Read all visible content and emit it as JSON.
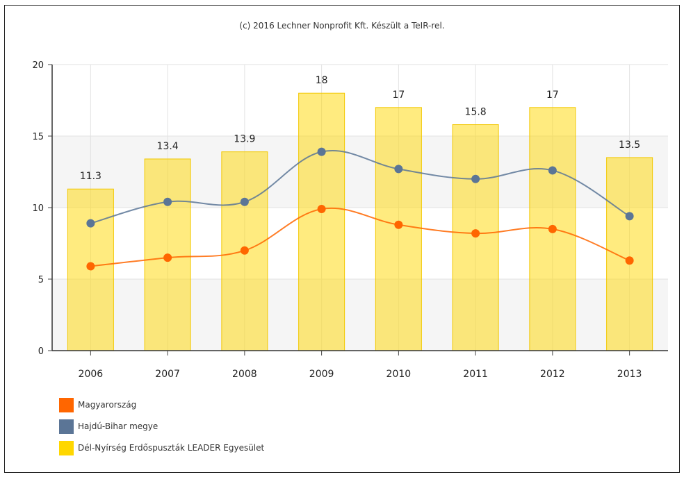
{
  "credit": "(c) 2016 Lechner Nonprofit Kft. Készült a TeIR-rel.",
  "chart_data": {
    "type": "bar",
    "categories": [
      "2006",
      "2007",
      "2008",
      "2009",
      "2010",
      "2011",
      "2012",
      "2013"
    ],
    "ylim": [
      0,
      20
    ],
    "yticks": [
      0,
      5,
      10,
      15,
      20
    ],
    "grid": true,
    "legend_position": "bottom-left",
    "bar_series": {
      "name": "Dél-Nyírség Erdőspuszták LEADER Egyesület",
      "color": "#ffd700",
      "values": [
        11.3,
        13.4,
        13.9,
        18,
        17,
        15.8,
        17,
        13.5
      ],
      "labels": [
        "11.3",
        "13.4",
        "13.9",
        "18",
        "17",
        "15.8",
        "17",
        "13.5"
      ]
    },
    "line_series": [
      {
        "name": "Magyarország",
        "color": "#ff6600",
        "values": [
          5.9,
          6.5,
          7.0,
          9.9,
          8.8,
          8.2,
          8.5,
          6.3
        ]
      },
      {
        "name": "Hajdú-Bihar megye",
        "color": "#5b7596",
        "values": [
          8.9,
          10.4,
          10.4,
          13.9,
          12.7,
          12.0,
          12.6,
          9.4
        ]
      }
    ]
  }
}
